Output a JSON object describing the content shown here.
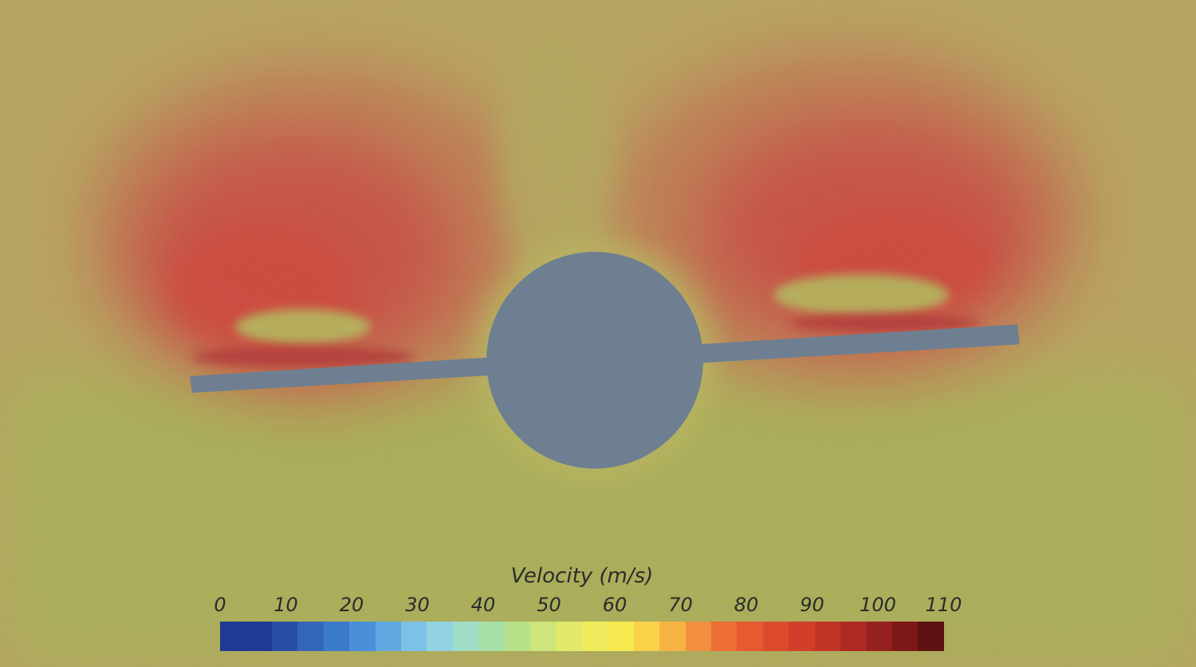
{
  "legend": {
    "title": "Velocity (m/s)",
    "ticks": [
      "0",
      "10",
      "20",
      "30",
      "40",
      "50",
      "60",
      "70",
      "80",
      "90",
      "100",
      "110"
    ],
    "range": [
      0,
      110
    ],
    "colors": [
      "#1f3a93",
      "#1f3a93",
      "#2a4ea5",
      "#3366b8",
      "#3b7acb",
      "#4a90d9",
      "#5fa8e0",
      "#7cc1e6",
      "#92d3e2",
      "#9fdcc8",
      "#a6dea8",
      "#b8e28a",
      "#cde57a",
      "#e0e96b",
      "#f0ec5e",
      "#f7e950",
      "#f8d34a",
      "#f7b244",
      "#f28f3e",
      "#ec6d35",
      "#e55a30",
      "#dc4a2c",
      "#d13e29",
      "#c23426",
      "#ad2a22",
      "#95201d",
      "#7d1818",
      "#5e1212"
    ]
  },
  "colors": {
    "background": "#b7a25b",
    "low_velocity": "#a7b14c",
    "high_velocity": "#c9463e",
    "geometry": "#6e7f91"
  }
}
